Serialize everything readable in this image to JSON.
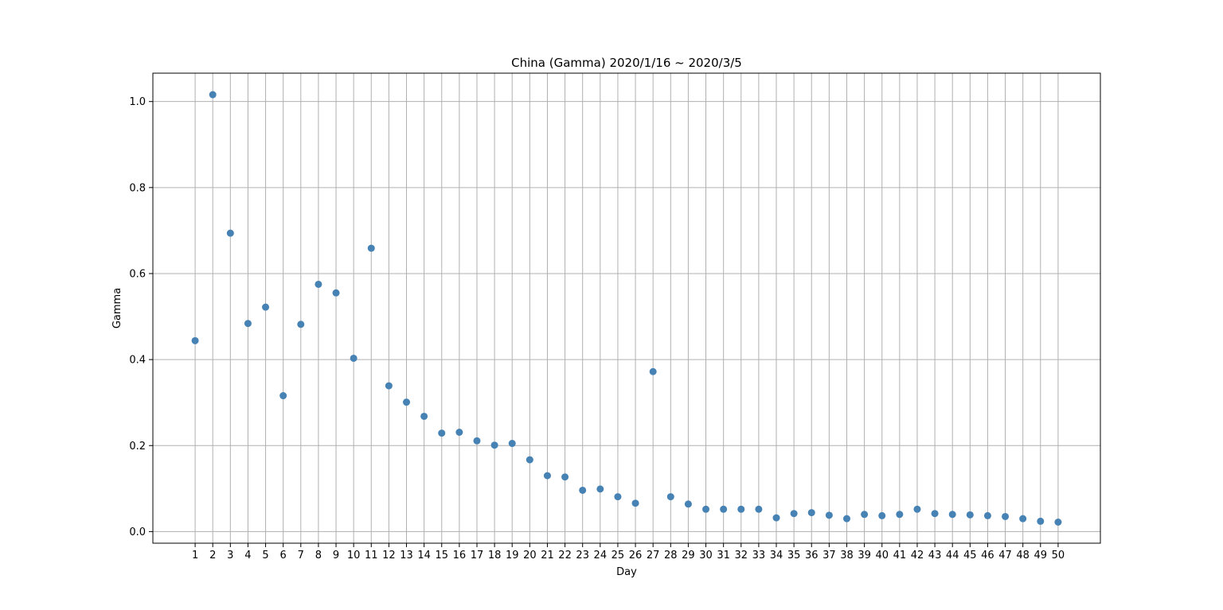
{
  "chart_data": {
    "type": "scatter",
    "title": "China (Gamma) 2020/1/16 ~ 2020/3/5",
    "xlabel": "Day",
    "ylabel": "Gamma",
    "x": [
      1,
      2,
      3,
      4,
      5,
      6,
      7,
      8,
      9,
      10,
      11,
      12,
      13,
      14,
      15,
      16,
      17,
      18,
      19,
      20,
      21,
      22,
      23,
      24,
      25,
      26,
      27,
      28,
      29,
      30,
      31,
      32,
      33,
      34,
      35,
      36,
      37,
      38,
      39,
      40,
      41,
      42,
      43,
      44,
      45,
      46,
      47,
      48,
      49,
      50
    ],
    "y": [
      0.444,
      1.016,
      0.694,
      0.484,
      0.522,
      0.316,
      0.482,
      0.575,
      0.555,
      0.403,
      0.659,
      0.339,
      0.301,
      0.268,
      0.229,
      0.231,
      0.211,
      0.201,
      0.205,
      0.167,
      0.13,
      0.127,
      0.096,
      0.099,
      0.081,
      0.066,
      0.372,
      0.081,
      0.064,
      0.052,
      0.052,
      0.052,
      0.052,
      0.032,
      0.042,
      0.044,
      0.038,
      0.03,
      0.04,
      0.037,
      0.04,
      0.052,
      0.042,
      0.04,
      0.039,
      0.037,
      0.035,
      0.03,
      0.024,
      0.022
    ],
    "xticks": [
      1,
      2,
      3,
      4,
      5,
      6,
      7,
      8,
      9,
      10,
      11,
      12,
      13,
      14,
      15,
      16,
      17,
      18,
      19,
      20,
      21,
      22,
      23,
      24,
      25,
      26,
      27,
      28,
      29,
      30,
      31,
      32,
      33,
      34,
      35,
      36,
      37,
      38,
      39,
      40,
      41,
      42,
      43,
      44,
      45,
      46,
      47,
      48,
      49,
      50
    ],
    "yticks": [
      "0.0",
      "0.2",
      "0.4",
      "0.6",
      "0.8",
      "1.0"
    ],
    "xlim": [
      -1.4,
      52.4
    ],
    "ylim": [
      -0.027,
      1.066
    ],
    "grid": true,
    "marker_color": "#4682b4"
  }
}
